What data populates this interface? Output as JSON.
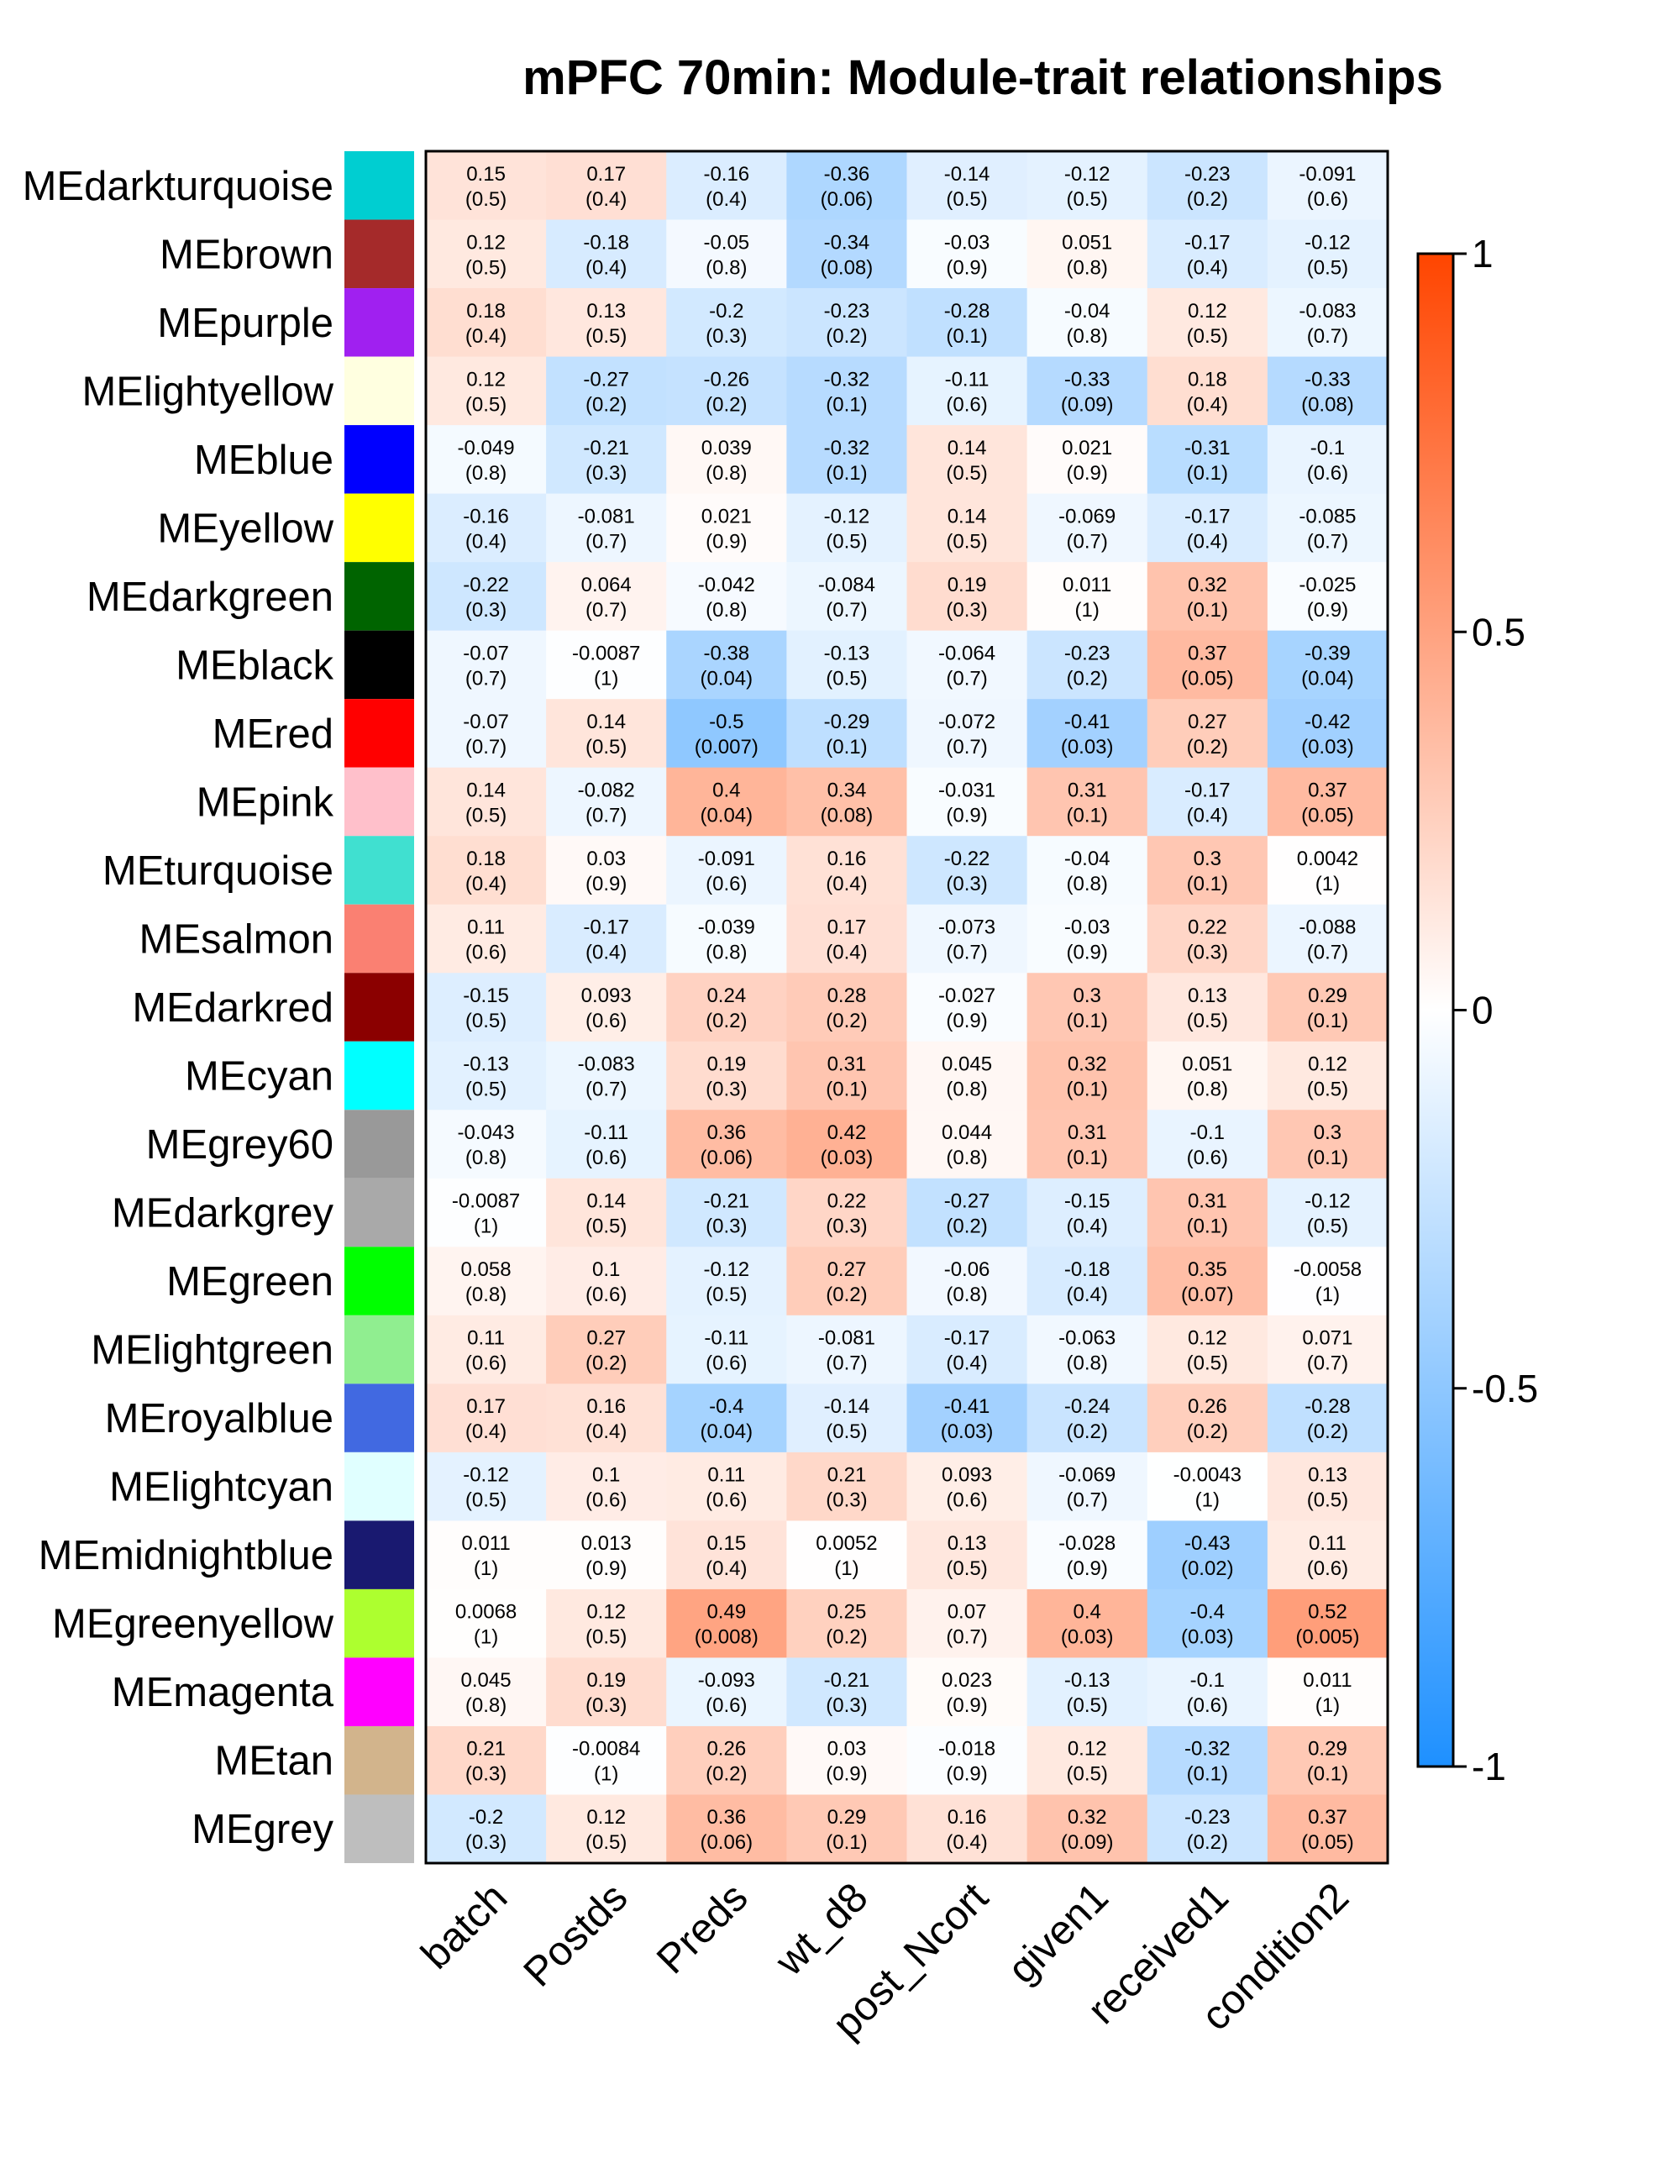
{
  "chart_data": {
    "type": "heatmap",
    "title": "mPFC 70min: Module-trait relationships",
    "columns": [
      "batch",
      "Postds",
      "Preds",
      "wt_d8",
      "post_Ncort",
      "given1",
      "received1",
      "condition2"
    ],
    "rows": [
      "MEdarkturquoise",
      "MEbrown",
      "MEpurple",
      "MElightyellow",
      "MEblue",
      "MEyellow",
      "MEdarkgreen",
      "MEblack",
      "MEred",
      "MEpink",
      "MEturquoise",
      "MEsalmon",
      "MEdarkred",
      "MEcyan",
      "MEgrey60",
      "MEdarkgrey",
      "MEgreen",
      "MElightgreen",
      "MEroyalblue",
      "MElightcyan",
      "MEmidnightblue",
      "MEgreenyellow",
      "MEmagenta",
      "MEtan",
      "MEgrey"
    ],
    "row_colors": [
      "#00CED1",
      "#A52A2A",
      "#A020F0",
      "#FFFFE0",
      "#0000FF",
      "#FFFF00",
      "#006400",
      "#000000",
      "#FF0000",
      "#FFC0CB",
      "#40E0D0",
      "#FA8072",
      "#8B0000",
      "#00FFFF",
      "#999999",
      "#A9A9A9",
      "#00FF00",
      "#90EE90",
      "#4169E1",
      "#E0FFFF",
      "#191970",
      "#ADFF2F",
      "#FF00FF",
      "#D2B48C",
      "#BEBEBE"
    ],
    "correlation": [
      [
        "0.15",
        "0.17",
        "-0.16",
        "-0.36",
        "-0.14",
        "-0.12",
        "-0.23",
        "-0.091"
      ],
      [
        "0.12",
        "-0.18",
        "-0.05",
        "-0.34",
        "-0.03",
        "0.051",
        "-0.17",
        "-0.12"
      ],
      [
        "0.18",
        "0.13",
        "-0.2",
        "-0.23",
        "-0.28",
        "-0.04",
        "0.12",
        "-0.083"
      ],
      [
        "0.12",
        "-0.27",
        "-0.26",
        "-0.32",
        "-0.11",
        "-0.33",
        "0.18",
        "-0.33"
      ],
      [
        "-0.049",
        "-0.21",
        "0.039",
        "-0.32",
        "0.14",
        "0.021",
        "-0.31",
        "-0.1"
      ],
      [
        "-0.16",
        "-0.081",
        "0.021",
        "-0.12",
        "0.14",
        "-0.069",
        "-0.17",
        "-0.085"
      ],
      [
        "-0.22",
        "0.064",
        "-0.042",
        "-0.084",
        "0.19",
        "0.011",
        "0.32",
        "-0.025"
      ],
      [
        "-0.07",
        "-0.0087",
        "-0.38",
        "-0.13",
        "-0.064",
        "-0.23",
        "0.37",
        "-0.39"
      ],
      [
        "-0.07",
        "0.14",
        "-0.5",
        "-0.29",
        "-0.072",
        "-0.41",
        "0.27",
        "-0.42"
      ],
      [
        "0.14",
        "-0.082",
        "0.4",
        "0.34",
        "-0.031",
        "0.31",
        "-0.17",
        "0.37"
      ],
      [
        "0.18",
        "0.03",
        "-0.091",
        "0.16",
        "-0.22",
        "-0.04",
        "0.3",
        "0.0042"
      ],
      [
        "0.11",
        "-0.17",
        "-0.039",
        "0.17",
        "-0.073",
        "-0.03",
        "0.22",
        "-0.088"
      ],
      [
        "-0.15",
        "0.093",
        "0.24",
        "0.28",
        "-0.027",
        "0.3",
        "0.13",
        "0.29"
      ],
      [
        "-0.13",
        "-0.083",
        "0.19",
        "0.31",
        "0.045",
        "0.32",
        "0.051",
        "0.12"
      ],
      [
        "-0.043",
        "-0.11",
        "0.36",
        "0.42",
        "0.044",
        "0.31",
        "-0.1",
        "0.3"
      ],
      [
        "-0.0087",
        "0.14",
        "-0.21",
        "0.22",
        "-0.27",
        "-0.15",
        "0.31",
        "-0.12"
      ],
      [
        "0.058",
        "0.1",
        "-0.12",
        "0.27",
        "-0.06",
        "-0.18",
        "0.35",
        "-0.0058"
      ],
      [
        "0.11",
        "0.27",
        "-0.11",
        "-0.081",
        "-0.17",
        "-0.063",
        "0.12",
        "0.071"
      ],
      [
        "0.17",
        "0.16",
        "-0.4",
        "-0.14",
        "-0.41",
        "-0.24",
        "0.26",
        "-0.28"
      ],
      [
        "-0.12",
        "0.1",
        "0.11",
        "0.21",
        "0.093",
        "-0.069",
        "-0.0043",
        "0.13"
      ],
      [
        "0.011",
        "0.013",
        "0.15",
        "0.0052",
        "0.13",
        "-0.028",
        "-0.43",
        "0.11"
      ],
      [
        "0.0068",
        "0.12",
        "0.49",
        "0.25",
        "0.07",
        "0.4",
        "-0.4",
        "0.52"
      ],
      [
        "0.045",
        "0.19",
        "-0.093",
        "-0.21",
        "0.023",
        "-0.13",
        "-0.1",
        "0.011"
      ],
      [
        "0.21",
        "-0.0084",
        "0.26",
        "0.03",
        "-0.018",
        "0.12",
        "-0.32",
        "0.29"
      ],
      [
        "-0.2",
        "0.12",
        "0.36",
        "0.29",
        "0.16",
        "0.32",
        "-0.23",
        "0.37"
      ]
    ],
    "pvalues": [
      [
        "(0.5)",
        "(0.4)",
        "(0.4)",
        "(0.06)",
        "(0.5)",
        "(0.5)",
        "(0.2)",
        "(0.6)"
      ],
      [
        "(0.5)",
        "(0.4)",
        "(0.8)",
        "(0.08)",
        "(0.9)",
        "(0.8)",
        "(0.4)",
        "(0.5)"
      ],
      [
        "(0.4)",
        "(0.5)",
        "(0.3)",
        "(0.2)",
        "(0.1)",
        "(0.8)",
        "(0.5)",
        "(0.7)"
      ],
      [
        "(0.5)",
        "(0.2)",
        "(0.2)",
        "(0.1)",
        "(0.6)",
        "(0.09)",
        "(0.4)",
        "(0.08)"
      ],
      [
        "(0.8)",
        "(0.3)",
        "(0.8)",
        "(0.1)",
        "(0.5)",
        "(0.9)",
        "(0.1)",
        "(0.6)"
      ],
      [
        "(0.4)",
        "(0.7)",
        "(0.9)",
        "(0.5)",
        "(0.5)",
        "(0.7)",
        "(0.4)",
        "(0.7)"
      ],
      [
        "(0.3)",
        "(0.7)",
        "(0.8)",
        "(0.7)",
        "(0.3)",
        "(1)",
        "(0.1)",
        "(0.9)"
      ],
      [
        "(0.7)",
        "(1)",
        "(0.04)",
        "(0.5)",
        "(0.7)",
        "(0.2)",
        "(0.05)",
        "(0.04)"
      ],
      [
        "(0.7)",
        "(0.5)",
        "(0.007)",
        "(0.1)",
        "(0.7)",
        "(0.03)",
        "(0.2)",
        "(0.03)"
      ],
      [
        "(0.5)",
        "(0.7)",
        "(0.04)",
        "(0.08)",
        "(0.9)",
        "(0.1)",
        "(0.4)",
        "(0.05)"
      ],
      [
        "(0.4)",
        "(0.9)",
        "(0.6)",
        "(0.4)",
        "(0.3)",
        "(0.8)",
        "(0.1)",
        "(1)"
      ],
      [
        "(0.6)",
        "(0.4)",
        "(0.8)",
        "(0.4)",
        "(0.7)",
        "(0.9)",
        "(0.3)",
        "(0.7)"
      ],
      [
        "(0.5)",
        "(0.6)",
        "(0.2)",
        "(0.2)",
        "(0.9)",
        "(0.1)",
        "(0.5)",
        "(0.1)"
      ],
      [
        "(0.5)",
        "(0.7)",
        "(0.3)",
        "(0.1)",
        "(0.8)",
        "(0.1)",
        "(0.8)",
        "(0.5)"
      ],
      [
        "(0.8)",
        "(0.6)",
        "(0.06)",
        "(0.03)",
        "(0.8)",
        "(0.1)",
        "(0.6)",
        "(0.1)"
      ],
      [
        "(1)",
        "(0.5)",
        "(0.3)",
        "(0.3)",
        "(0.2)",
        "(0.4)",
        "(0.1)",
        "(0.5)"
      ],
      [
        "(0.8)",
        "(0.6)",
        "(0.5)",
        "(0.2)",
        "(0.8)",
        "(0.4)",
        "(0.07)",
        "(1)"
      ],
      [
        "(0.6)",
        "(0.2)",
        "(0.6)",
        "(0.7)",
        "(0.4)",
        "(0.8)",
        "(0.5)",
        "(0.7)"
      ],
      [
        "(0.4)",
        "(0.4)",
        "(0.04)",
        "(0.5)",
        "(0.03)",
        "(0.2)",
        "(0.2)",
        "(0.2)"
      ],
      [
        "(0.5)",
        "(0.6)",
        "(0.6)",
        "(0.3)",
        "(0.6)",
        "(0.7)",
        "(1)",
        "(0.5)"
      ],
      [
        "(1)",
        "(0.9)",
        "(0.4)",
        "(1)",
        "(0.5)",
        "(0.9)",
        "(0.02)",
        "(0.6)"
      ],
      [
        "(1)",
        "(0.5)",
        "(0.008)",
        "(0.2)",
        "(0.7)",
        "(0.03)",
        "(0.03)",
        "(0.005)"
      ],
      [
        "(0.8)",
        "(0.3)",
        "(0.6)",
        "(0.3)",
        "(0.9)",
        "(0.5)",
        "(0.6)",
        "(1)"
      ],
      [
        "(0.3)",
        "(1)",
        "(0.2)",
        "(0.9)",
        "(0.9)",
        "(0.5)",
        "(0.1)",
        "(0.1)"
      ],
      [
        "(0.3)",
        "(0.5)",
        "(0.06)",
        "(0.1)",
        "(0.4)",
        "(0.09)",
        "(0.2)",
        "(0.05)"
      ]
    ],
    "color_scale": {
      "min": -1,
      "max": 1,
      "negative_color": "#1E90FF",
      "zero_color": "#FFFFFF",
      "positive_color": "#FF4500",
      "ticks": [
        "1",
        "0.5",
        "0",
        "-0.5",
        "-1"
      ],
      "tick_values": [
        1,
        0.5,
        0,
        -0.5,
        -1
      ]
    },
    "legend": "right"
  }
}
